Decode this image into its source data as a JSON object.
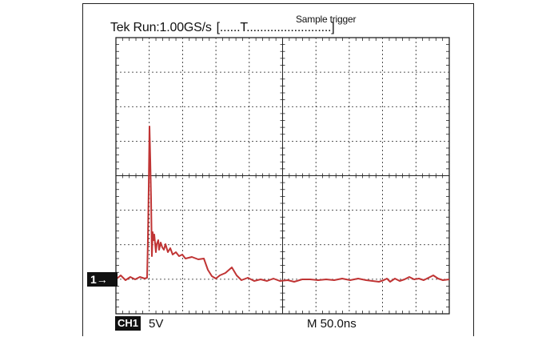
{
  "scope": {
    "header": {
      "run_text": "Tek Run:",
      "sample_rate": "1.00GS/s",
      "trigger_bracket": "[......T.........................]",
      "trigger_mode": "Sample trigger"
    },
    "channel_marker": "1",
    "channel_badge": "CH1",
    "volts_per_div": "5V",
    "timebase": "M 50.0ns",
    "trace_color": "#c03434"
  }
}
